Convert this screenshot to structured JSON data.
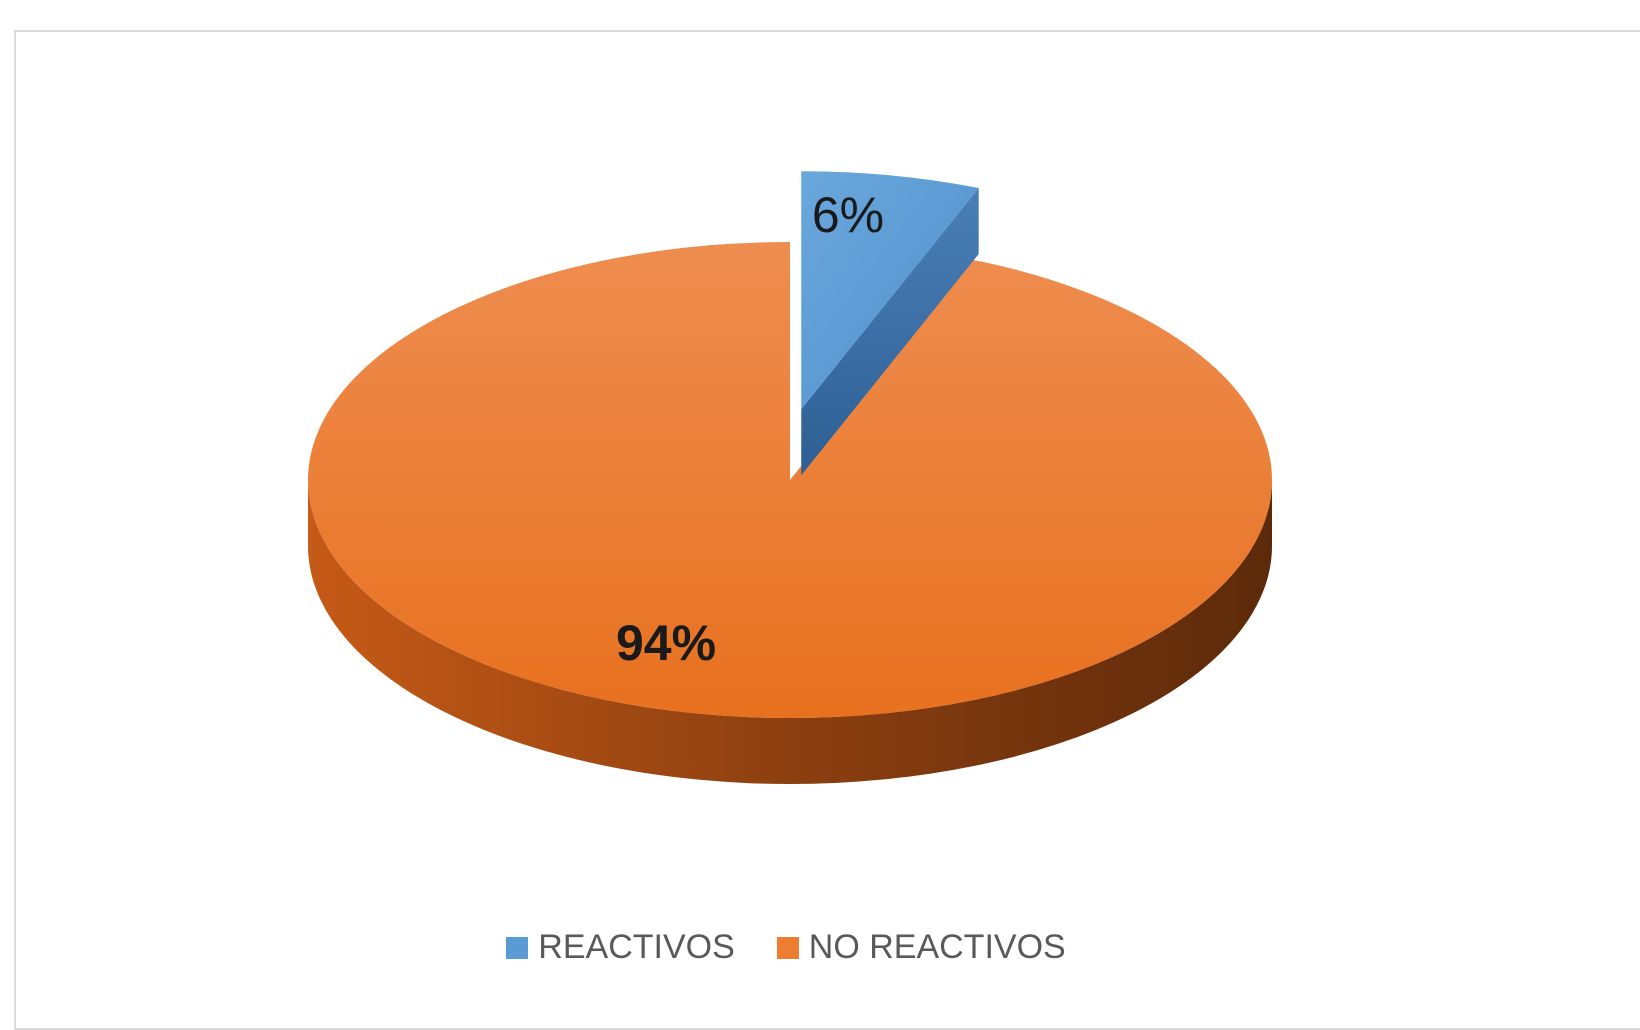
{
  "chart_data": {
    "type": "pie",
    "title": "",
    "categories": [
      "REACTIVOS",
      "NO REACTIVOS"
    ],
    "values": [
      6,
      94
    ],
    "value_labels": [
      "6%",
      "94%"
    ],
    "colors": [
      "#5b9bd5",
      "#ed7d31"
    ],
    "exploded": [
      true,
      false
    ],
    "style": "3d",
    "legend_position": "bottom"
  }
}
